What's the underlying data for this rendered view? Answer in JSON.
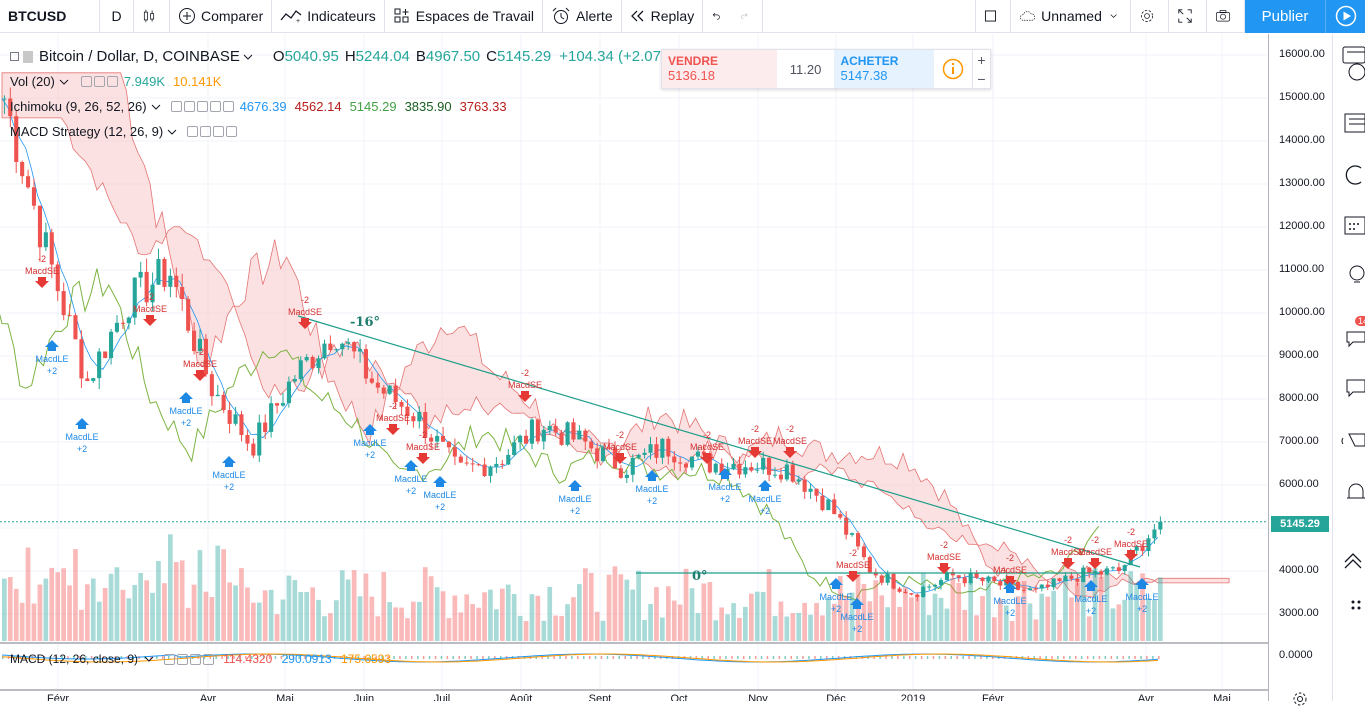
{
  "toolbar": {
    "symbol": "BTCUSD",
    "interval": "D",
    "compare_label": "Comparer",
    "indicators_label": "Indicateurs",
    "workspaces_label": "Espaces de Travail",
    "alert_label": "Alerte",
    "replay_label": "Replay",
    "layout_name": "Unnamed",
    "publish_label": "Publier"
  },
  "legend": {
    "title": "Bitcoin / Dollar, D, COINBASE",
    "o_label": "O",
    "o_value": "5040.95",
    "h_label": "H",
    "h_value": "5244.04",
    "b_label": "B",
    "b_value": "4967.50",
    "c_label": "C",
    "c_value": "5145.29",
    "change": "+104.34 (+2.07%)",
    "vol_label": "Vol (20)",
    "vol_value_1": "7.949K",
    "vol_value_2": "10.141K",
    "ichimoku_label": "Ichimoku (9, 26, 52, 26)",
    "ichimoku_values": [
      "4676.39",
      "4562.14",
      "5145.29",
      "3835.90",
      "3763.33"
    ],
    "macd_strategy_label": "MACD Strategy (12, 26, 9)",
    "macd_label": "MACD (12, 26, close, 9)",
    "macd_values": [
      "114.4320",
      "290.0913",
      "175.6593"
    ]
  },
  "trade": {
    "sell_label": "VENDRE",
    "sell_price": "5136.18",
    "spread": "11.20",
    "buy_label": "ACHETER",
    "buy_price": "5147.38"
  },
  "price_axis": {
    "ticks": [
      "16000.00",
      "15000.00",
      "14000.00",
      "13000.00",
      "12000.00",
      "11000.00",
      "10000.00",
      "9000.00",
      "8000.00",
      "7000.00",
      "6000.00",
      "5000.00",
      "4000.00",
      "3000.00"
    ],
    "last_price": "5145.29",
    "macd_zero": "0.0000"
  },
  "time_axis": [
    "Févr",
    "Avr",
    "Mai",
    "Juin",
    "Juil",
    "Août",
    "Sept",
    "Oct",
    "Nov",
    "Déc",
    "2019",
    "Févr",
    "Avr",
    "Mai"
  ],
  "annotations": {
    "trend_angle": "-16°",
    "flat_angle": "0°",
    "macd_se": "MacdSE",
    "macd_le": "MacdLE",
    "minus_two": "-2",
    "plus_two": "+2"
  },
  "right_badge": "14",
  "colors": {
    "up": "#26a69a",
    "down": "#ef5350",
    "accent": "#2196f3",
    "cloud_bear": "#f7c8c8",
    "cloud_bull": "#c8e6c9"
  },
  "chart_data": {
    "type": "candlestick",
    "symbol": "BTCUSD",
    "ylim": [
      2600,
      16400
    ],
    "close_path": [
      [
        "Jan",
        15000
      ],
      [
        "Jan",
        11500
      ],
      [
        "Févr",
        8400
      ],
      [
        "Févr",
        10300
      ],
      [
        "Mars",
        11000
      ],
      [
        "Mars",
        8300
      ],
      [
        "Avr",
        6900
      ],
      [
        "Avr",
        8500
      ],
      [
        "Mai",
        9600
      ],
      [
        "Mai",
        8300
      ],
      [
        "Juin",
        7600
      ],
      [
        "Juin",
        6300
      ],
      [
        "Juil",
        6600
      ],
      [
        "Juil",
        7400
      ],
      [
        "Août",
        7000
      ],
      [
        "Août",
        6400
      ],
      [
        "Sept",
        6900
      ],
      [
        "Sept",
        6500
      ],
      [
        "Oct",
        6500
      ],
      [
        "Nov",
        6400
      ],
      [
        "Nov",
        5500
      ],
      [
        "Nov",
        4000
      ],
      [
        "Déc",
        3500
      ],
      [
        "Déc",
        3900
      ],
      [
        "2019",
        3700
      ],
      [
        "Févr",
        3500
      ],
      [
        "Mars",
        3900
      ],
      [
        "Mars",
        4000
      ],
      [
        "Avr",
        5145
      ]
    ]
  }
}
